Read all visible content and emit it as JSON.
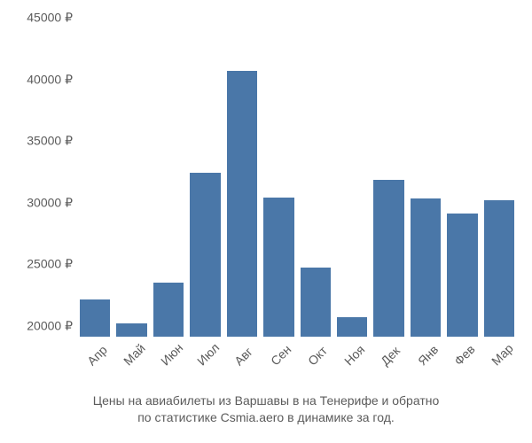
{
  "chart": {
    "type": "bar",
    "categories": [
      "Апр",
      "Май",
      "Июн",
      "Июл",
      "Авг",
      "Сен",
      "Окт",
      "Ноя",
      "Дек",
      "Янв",
      "Фев",
      "Мар"
    ],
    "values": [
      22100,
      20200,
      23500,
      32400,
      40700,
      30400,
      24700,
      20700,
      31800,
      30300,
      29100,
      30200
    ],
    "bar_color": "#4a77a8",
    "baseline": 19100,
    "ylim": [
      19100,
      45000
    ],
    "ytick_values": [
      20000,
      25000,
      30000,
      35000,
      40000,
      45000
    ],
    "ytick_labels": [
      "20000 ₽",
      "25000 ₽",
      "30000 ₽",
      "35000 ₽",
      "40000 ₽",
      "45000 ₽"
    ],
    "ylabel_fontsize": 14,
    "xlabel_fontsize": 14,
    "xlabel_rotation": -45,
    "text_color": "#5b5b5b",
    "background_color": "#ffffff",
    "bar_gap": 7
  },
  "caption": {
    "line1": "Цены на авиабилеты из Варшавы в на Тенерифе и обратно",
    "line2": "по статистике Csmia.aero в динамике за год."
  }
}
